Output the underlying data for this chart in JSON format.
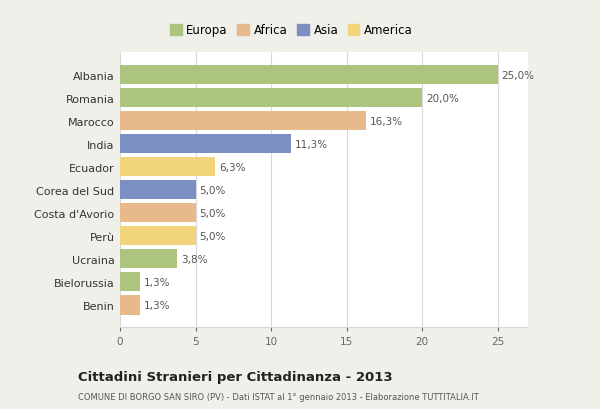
{
  "countries": [
    "Albania",
    "Romania",
    "Marocco",
    "India",
    "Ecuador",
    "Corea del Sud",
    "Costa d'Avorio",
    "Perù",
    "Ucraina",
    "Bielorussia",
    "Benin"
  ],
  "values": [
    25.0,
    20.0,
    16.3,
    11.3,
    6.3,
    5.0,
    5.0,
    5.0,
    3.8,
    1.3,
    1.3
  ],
  "labels": [
    "25,0%",
    "20,0%",
    "16,3%",
    "11,3%",
    "6,3%",
    "5,0%",
    "5,0%",
    "5,0%",
    "3,8%",
    "1,3%",
    "1,3%"
  ],
  "colors": [
    "#adc47e",
    "#adc47e",
    "#e8b98a",
    "#7b8fc2",
    "#f2d47a",
    "#7b8fc2",
    "#e8b98a",
    "#f2d47a",
    "#adc47e",
    "#adc47e",
    "#e8b98a"
  ],
  "legend_labels": [
    "Europa",
    "Africa",
    "Asia",
    "America"
  ],
  "legend_colors": [
    "#adc47e",
    "#e8b98a",
    "#7b8fc2",
    "#f2d47a"
  ],
  "title": "Cittadini Stranieri per Cittadinanza - 2013",
  "subtitle": "COMUNE DI BORGO SAN SIRO (PV) - Dati ISTAT al 1° gennaio 2013 - Elaborazione TUTTITALIA.IT",
  "xlim": [
    0,
    27
  ],
  "xticks": [
    0,
    5,
    10,
    15,
    20,
    25
  ],
  "background_color": "#f0f0eb",
  "plot_bg_color": "#ffffff",
  "grid_color": "#d8d8d8"
}
